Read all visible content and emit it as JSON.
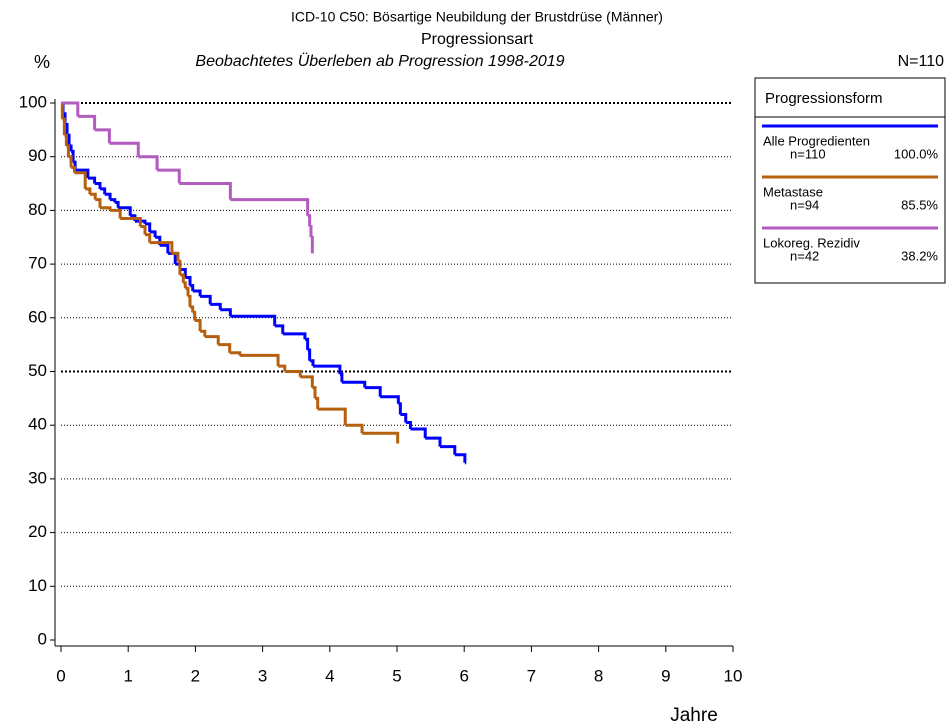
{
  "chart_data": {
    "type": "step",
    "title": "ICD-10 C50: Bösartige Neubildung der Brustdrüse (Männer)",
    "subtitle": "Progressionsart",
    "subtitle2": "Beobachtetes Überleben ab Progression 1998-2019",
    "y_label": "%",
    "x_label": "Jahre",
    "n_total": "N=110",
    "legend_title": "Progressionsform",
    "xlim": [
      0,
      10
    ],
    "xticks": [
      0,
      1,
      2,
      3,
      4,
      5,
      6,
      7,
      8,
      9,
      10
    ],
    "ylim": [
      0,
      100
    ],
    "yticks": [
      0,
      10,
      20,
      30,
      40,
      50,
      60,
      70,
      80,
      90,
      100
    ],
    "grid": true,
    "series": [
      {
        "name": "Alle Progredienten",
        "color": "#0000ff",
        "n_label": "n=110",
        "share_label": "100.0%",
        "x": [
          0,
          0.03,
          0.06,
          0.09,
          0.12,
          0.15,
          0.18,
          0.21,
          0.4,
          0.5,
          0.58,
          0.65,
          0.73,
          0.8,
          0.85,
          1.03,
          1.1,
          1.25,
          1.32,
          1.4,
          1.47,
          1.59,
          1.7,
          1.77,
          1.85,
          1.92,
          1.96,
          2.07,
          2.22,
          2.37,
          2.52,
          3.18,
          3.3,
          3.63,
          3.67,
          3.7,
          3.75,
          4.15,
          4.18,
          4.52,
          4.75,
          5.02,
          5.05,
          5.13,
          5.2,
          5.42,
          5.64,
          5.86,
          6.01,
          6.03
        ],
        "values": [
          100,
          98,
          96,
          94,
          92,
          91,
          89,
          87.5,
          86,
          85,
          84,
          83,
          82,
          81.5,
          80.5,
          79,
          78,
          77.5,
          76,
          75,
          73.5,
          72,
          70,
          69,
          67.5,
          66,
          65,
          64,
          62.5,
          61.5,
          60.3,
          58.5,
          57,
          56,
          54,
          52,
          51,
          49.5,
          48,
          47,
          45.3,
          44,
          42,
          40.5,
          39.3,
          37.6,
          36,
          34.5,
          33,
          33
        ]
      },
      {
        "name": "Metastase",
        "color": "#b5600f",
        "n_label": "n=94",
        "share_label": "85.5%",
        "x": [
          0,
          0.02,
          0.05,
          0.08,
          0.11,
          0.15,
          0.2,
          0.36,
          0.43,
          0.51,
          0.58,
          0.73,
          0.88,
          1.18,
          1.25,
          1.32,
          1.65,
          1.74,
          1.77,
          1.82,
          1.85,
          1.89,
          1.92,
          1.96,
          1.99,
          2.07,
          2.14,
          2.34,
          2.51,
          2.66,
          3.23,
          3.33,
          3.56,
          3.74,
          3.78,
          3.82,
          4.23,
          4.48,
          5.01,
          5.01
        ],
        "values": [
          100,
          97,
          94,
          92,
          90,
          88,
          87,
          84,
          83,
          82,
          80.5,
          80,
          78.5,
          77,
          75.5,
          74,
          72,
          70.5,
          68,
          66.5,
          65.5,
          64,
          62,
          61,
          59.5,
          57.5,
          56.5,
          55,
          53.5,
          53,
          51,
          50,
          49,
          47,
          45,
          43,
          40,
          38.5,
          36.6,
          36.6
        ]
      },
      {
        "name": "Lokoreg. Rezidiv",
        "color": "#b25cbf",
        "n_label": "n=42",
        "share_label": "38.2%",
        "x": [
          0,
          0.25,
          0.5,
          0.72,
          1.15,
          1.43,
          1.76,
          2.52,
          3.67,
          3.7,
          3.72,
          3.74,
          3.74
        ],
        "values": [
          100,
          97.5,
          95,
          92.5,
          90,
          87.5,
          85,
          82,
          79,
          77,
          75,
          72,
          72
        ]
      }
    ]
  }
}
